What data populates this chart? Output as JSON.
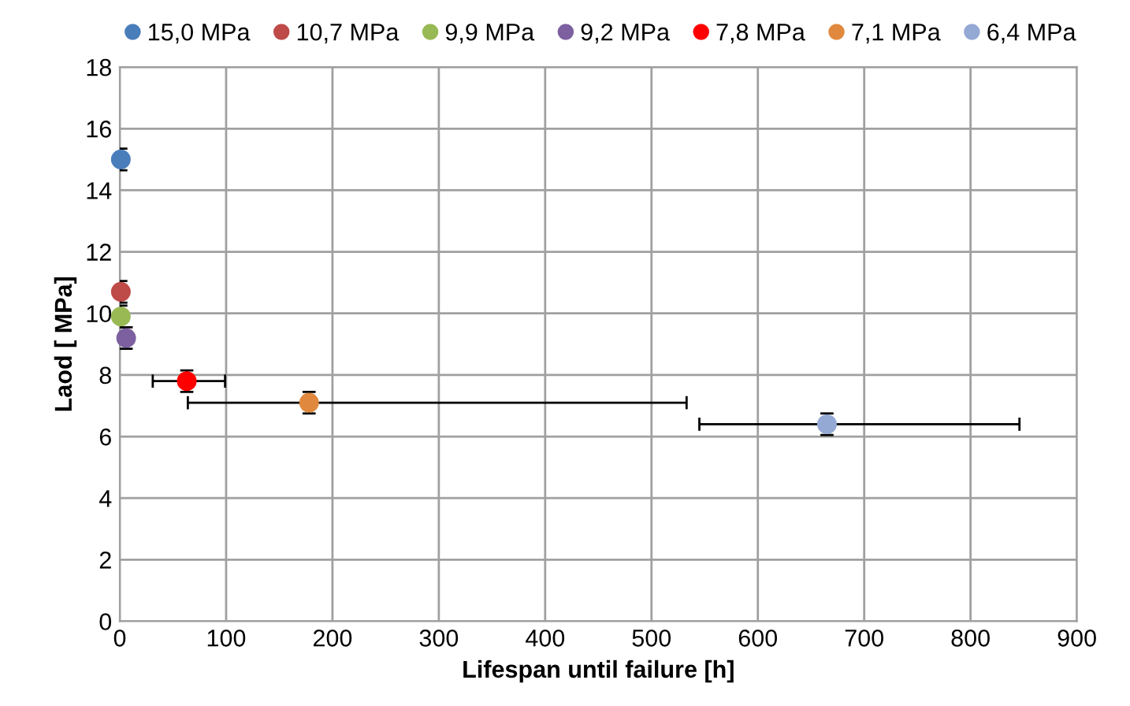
{
  "chart_data": {
    "type": "scatter",
    "xlabel": "Lifespan until failure [h]",
    "ylabel": "Laod [ MPa]",
    "xlim": [
      0,
      900
    ],
    "xticks": [
      0,
      100,
      200,
      300,
      400,
      500,
      600,
      700,
      800,
      900
    ],
    "ylim": [
      0,
      18
    ],
    "yticks": [
      0,
      2,
      4,
      6,
      8,
      10,
      12,
      14,
      16,
      18
    ],
    "grid": true,
    "legend": "top",
    "marker": "circle",
    "series": [
      {
        "name": "15,0 MPa",
        "color": "#4a7ebb",
        "x": [
          1
        ],
        "values": [
          15.0
        ],
        "errors": [
          0.35
        ]
      },
      {
        "name": "10,7 MPa",
        "color": "#be4b48",
        "x": [
          1
        ],
        "values": [
          10.7
        ],
        "errors": [
          0.35
        ]
      },
      {
        "name": "9,9 MPa",
        "color": "#98b954",
        "x": [
          1
        ],
        "values": [
          9.9
        ],
        "errors": [
          0.35
        ]
      },
      {
        "name": "9,2 MPa",
        "color": "#7d60a0",
        "x": [
          6
        ],
        "values": [
          9.2
        ],
        "errors": [
          0.35
        ]
      },
      {
        "name": "7,8 MPa",
        "color": "#ff0000",
        "x": [
          63
        ],
        "values": [
          7.8
        ],
        "errors": [
          0.35
        ],
        "xerrors": [
          [
            31,
            99
          ]
        ]
      },
      {
        "name": "7,1 MPa",
        "color": "#e0893e",
        "x": [
          178
        ],
        "values": [
          7.1
        ],
        "errors": [
          0.35
        ],
        "xerrors": [
          [
            64,
            533
          ]
        ]
      },
      {
        "name": "6,4 MPa",
        "color": "#94a9d4",
        "x": [
          665
        ],
        "values": [
          6.4
        ],
        "errors": [
          0.35
        ],
        "xerrors": [
          [
            545,
            846
          ]
        ]
      }
    ]
  }
}
